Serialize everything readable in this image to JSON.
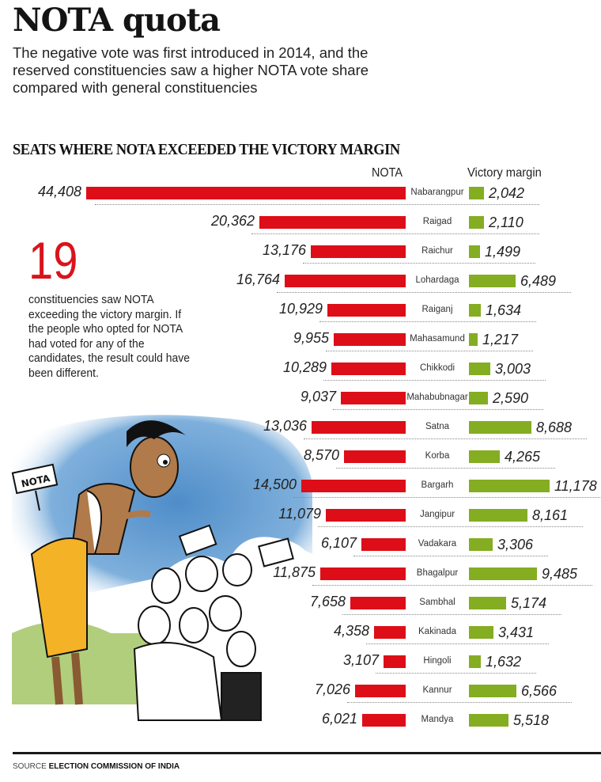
{
  "header": {
    "title": "NOTA quota",
    "subtitle": "The negative vote was first introduced in 2014, and the reserved constituencies saw a higher NOTA vote share compared with general constituencies"
  },
  "callout": {
    "number": "19",
    "text": "constituencies saw NOTA exceeding the victory margin. If the people who opted for NOTA had voted for any of the candidates, the result could have been different."
  },
  "illustration": {
    "sign_text": "NOTA"
  },
  "legend": {
    "nota": "NOTA",
    "victory_margin": "Victory margin"
  },
  "colors": {
    "nota": "#dd0e18",
    "victory_margin": "#84ad22",
    "callout_number": "#d9141b"
  },
  "footer": {
    "source_label": "SOURCE",
    "source_value": "ELECTION COMMISSION OF INDIA"
  },
  "chart_data": {
    "type": "bar",
    "title": "SEATS WHERE NOTA EXCEEDED THE VICTORY MARGIN",
    "orientation": "horizontal-diverging",
    "categories": [
      "Nabarangpur",
      "Raigad",
      "Raichur",
      "Lohardaga",
      "Raiganj",
      "Mahasamund",
      "Chikkodi",
      "Mahabubnagar",
      "Satna",
      "Korba",
      "Bargarh",
      "Jangipur",
      "Vadakara",
      "Bhagalpur",
      "Sambhal",
      "Kakinada",
      "Hingoli",
      "Kannur",
      "Mandya"
    ],
    "series": [
      {
        "name": "NOTA",
        "values": [
          44408,
          20362,
          13176,
          16764,
          10929,
          9955,
          10289,
          9037,
          13036,
          8570,
          14500,
          11079,
          6107,
          11875,
          7658,
          4358,
          3107,
          7026,
          6021
        ]
      },
      {
        "name": "Victory margin",
        "values": [
          2042,
          2110,
          1499,
          6489,
          1634,
          1217,
          3003,
          2590,
          8688,
          4265,
          11178,
          8161,
          3306,
          9485,
          5174,
          3431,
          1632,
          6566,
          5518
        ]
      }
    ],
    "labels": {
      "nota": [
        "44,408",
        "20,362",
        "13,176",
        "16,764",
        "10,929",
        "9,955",
        "10,289",
        "9,037",
        "13,036",
        "8,570",
        "14,500",
        "11,079",
        "6,107",
        "11,875",
        "7,658",
        "4,358",
        "3,107",
        "7,026",
        "6,021"
      ],
      "victory_margin": [
        "2,042",
        "2,110",
        "1,499",
        "6,489",
        "1,634",
        "1,217",
        "3,003",
        "2,590",
        "8,688",
        "4,265",
        "11,178",
        "8,161",
        "3,306",
        "9,485",
        "5,174",
        "3,431",
        "1,632",
        "6,566",
        "5,518"
      ]
    },
    "legend": [
      "NOTA",
      "Victory margin"
    ],
    "grid": false
  }
}
